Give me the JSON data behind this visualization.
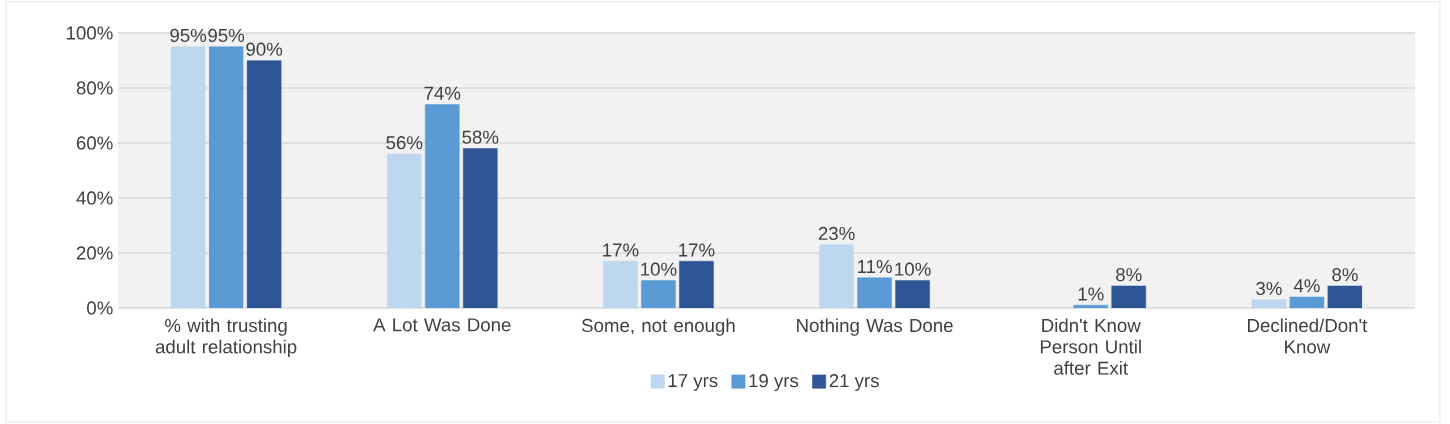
{
  "chart_data": {
    "type": "bar",
    "categories": [
      "% with trusting adult relationship",
      "A Lot Was Done",
      "Some, not enough",
      "Nothing Was Done",
      "Didn't Know Person Until after Exit",
      "Declined/Don't Know"
    ],
    "series": [
      {
        "name": "17 yrs",
        "color": "#bdd7ee",
        "values": [
          95,
          56,
          17,
          23,
          null,
          3
        ],
        "value_labels": [
          "95%",
          "56%",
          "17%",
          "23%",
          null,
          "3%"
        ]
      },
      {
        "name": "19 yrs",
        "color": "#5b9bd5",
        "values": [
          95,
          74,
          10,
          11,
          1,
          4
        ],
        "value_labels": [
          "95%",
          "74%",
          "10%",
          "11%",
          "1%",
          "4%"
        ]
      },
      {
        "name": "21 yrs",
        "color": "#2f5597",
        "values": [
          90,
          58,
          17,
          10,
          8,
          8
        ],
        "value_labels": [
          "90%",
          "58%",
          "17%",
          "10%",
          "8%",
          "8%"
        ]
      }
    ],
    "ylim": [
      0,
      100
    ],
    "yticks": [
      {
        "value": 0,
        "label": "0%"
      },
      {
        "value": 20,
        "label": "20%"
      },
      {
        "value": 40,
        "label": "40%"
      },
      {
        "value": 60,
        "label": "60%"
      },
      {
        "value": 80,
        "label": "80%"
      },
      {
        "value": 100,
        "label": "100%"
      }
    ],
    "grid": "y",
    "legend": "bottom"
  }
}
